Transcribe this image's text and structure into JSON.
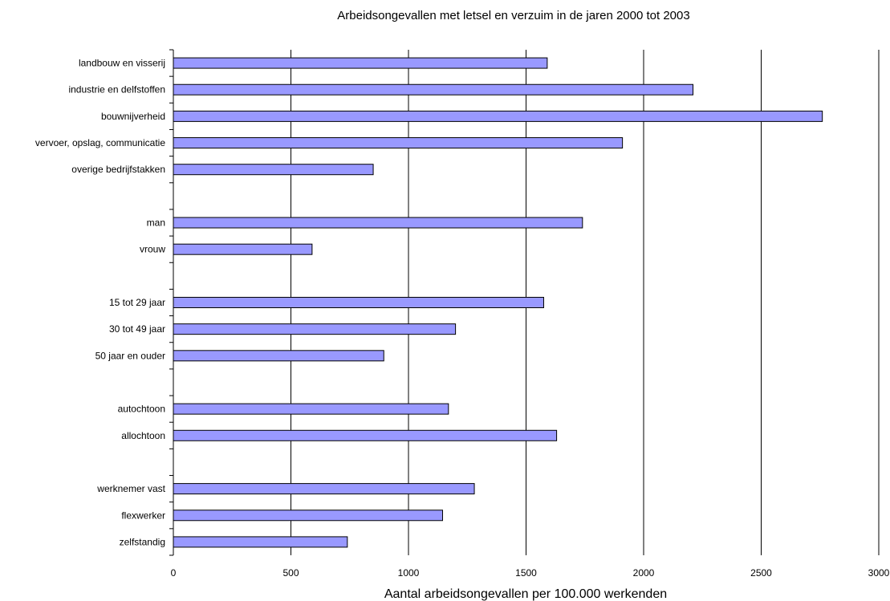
{
  "chart_data": {
    "type": "bar",
    "orientation": "horizontal",
    "title": "Arbeidsongevallen met letsel en verzuim in de jaren 2000 tot 2003",
    "xlabel": "Aantal arbeidsongevallen per 100.000 werkenden",
    "ylabel": "",
    "xlim": [
      0,
      3000
    ],
    "xticks": [
      "0",
      "500",
      "1000",
      "1500",
      "2000",
      "2500",
      "3000"
    ],
    "grid": "vertical",
    "bar_color": "#9999FF",
    "bar_edge_color": "#000000",
    "categories": [
      "landbouw en visserij",
      "industrie en delfstoffen",
      "bouwnijverheid",
      "vervoer, opslag, communicatie",
      "overige bedrijfstakken",
      "",
      "man",
      "vrouw",
      "",
      "15 tot 29 jaar",
      "30 tot 49 jaar",
      "50 jaar en ouder",
      "",
      "autochtoon",
      "allochtoon",
      "",
      "werknemer vast",
      "flexwerker",
      "zelfstandig"
    ],
    "values": [
      1590,
      2210,
      2760,
      1910,
      850,
      null,
      1740,
      590,
      null,
      1575,
      1200,
      895,
      null,
      1170,
      1630,
      null,
      1280,
      1145,
      740
    ]
  }
}
